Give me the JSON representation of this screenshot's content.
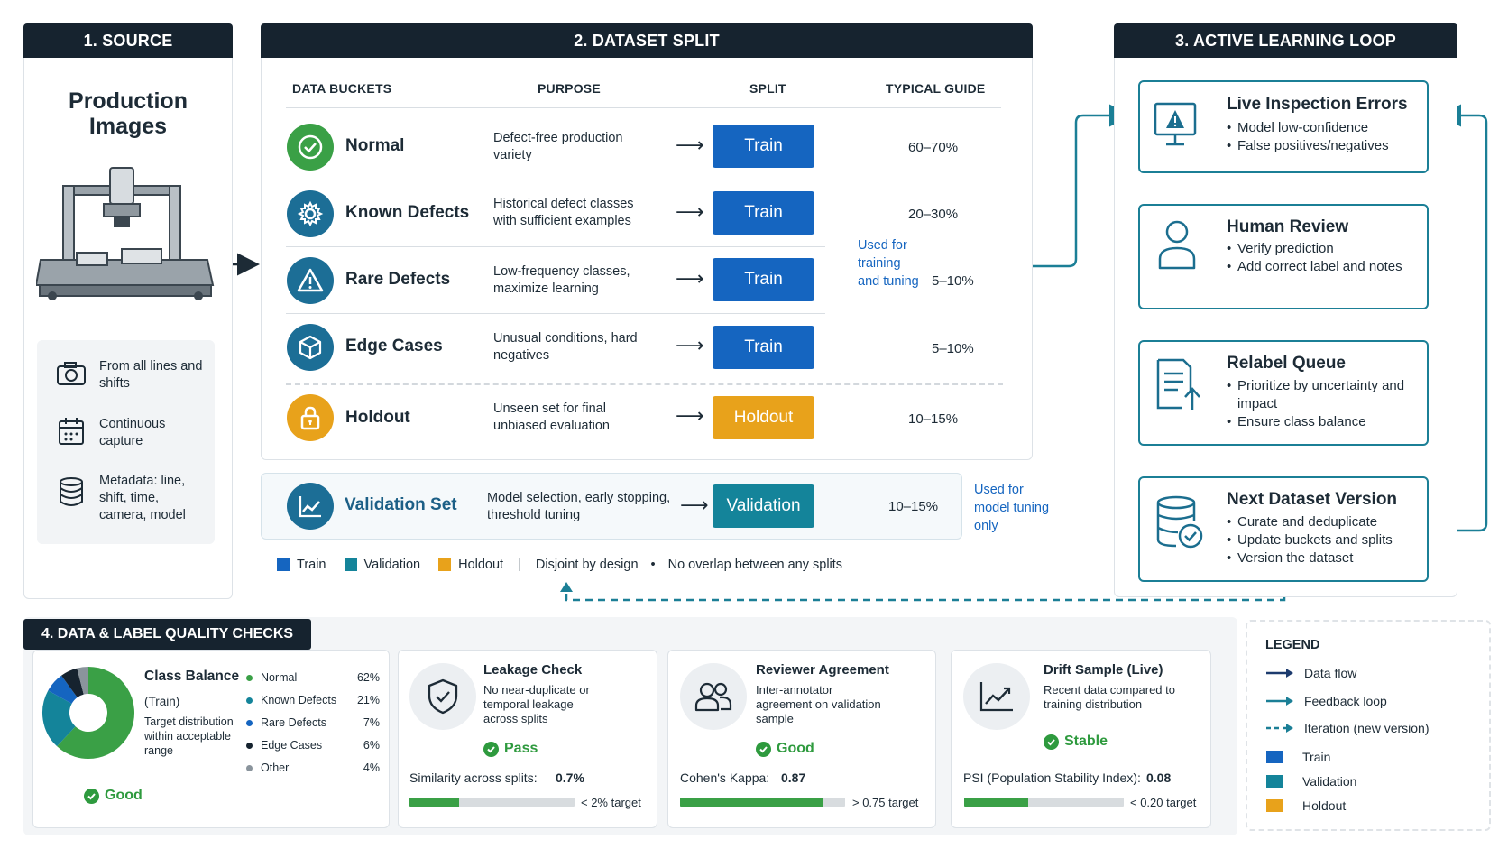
{
  "colors": {
    "header": "#16232f",
    "train": "#1565c0",
    "validation": "#14849a",
    "holdout": "#e8a21b",
    "teal": "#1b7f96",
    "good": "#2e9a3e"
  },
  "source": {
    "title": "1. SOURCE",
    "heading": "Production Images",
    "items": [
      {
        "icon": "camera-icon",
        "label": "From all lines and shifts"
      },
      {
        "icon": "calendar-icon",
        "label": "Continuous capture"
      },
      {
        "icon": "database-icon",
        "label": "Metadata: line, shift, time, camera, model"
      }
    ]
  },
  "split": {
    "title": "2. DATASET SPLIT",
    "columns": [
      "DATA BUCKETS",
      "PURPOSE",
      "SPLIT",
      "TYPICAL GUIDE"
    ],
    "rows": [
      {
        "icon": "check-circle-icon",
        "name": "Normal",
        "purpose": "Defect-free production variety",
        "split": "Train",
        "guide": "60–70%"
      },
      {
        "icon": "gear-icon",
        "name": "Known Defects",
        "purpose": "Historical defect classes with sufficient examples",
        "split": "Train",
        "guide": "20–30%"
      },
      {
        "icon": "warning-icon",
        "name": "Rare Defects",
        "purpose": "Low-frequency classes, maximize learning",
        "split": "Train",
        "guide": "5–10%"
      },
      {
        "icon": "cube-icon",
        "name": "Edge Cases",
        "purpose": "Unusual conditions, hard negatives",
        "split": "Train",
        "guide": "5–10%"
      },
      {
        "icon": "lock-icon",
        "name": "Holdout",
        "purpose": "Unseen set for final unbiased evaluation",
        "split": "Holdout",
        "guide": "10–15%"
      }
    ],
    "brace_note": "Used for training and tuning",
    "validation": {
      "icon": "line-chart-icon",
      "name": "Validation Set",
      "purpose": "Model selection, early stopping, threshold tuning",
      "split": "Validation",
      "guide": "10–15%",
      "note": "Used for model tuning only"
    },
    "legend": {
      "train": "Train",
      "validation": "Validation",
      "holdout": "Holdout",
      "disjoint": "Disjoint by design",
      "no_overlap": "No overlap between any splits"
    }
  },
  "loop": {
    "title": "3. ACTIVE LEARNING LOOP",
    "steps": [
      {
        "icon": "monitor-alert-icon",
        "title": "Live Inspection Errors",
        "items": [
          "Model low-confidence",
          "False positives/negatives"
        ]
      },
      {
        "icon": "user-icon",
        "title": "Human Review",
        "items": [
          "Verify prediction",
          "Add correct label and notes"
        ]
      },
      {
        "icon": "document-upload-icon",
        "title": "Relabel Queue",
        "items": [
          "Prioritize by uncertainty and impact",
          "Ensure class balance"
        ]
      },
      {
        "icon": "database-check-icon",
        "title": "Next Dataset Version",
        "items": [
          "Curate and deduplicate",
          "Update buckets and splits",
          "Version the dataset"
        ]
      }
    ]
  },
  "quality": {
    "title": "4. DATA & LABEL QUALITY CHECKS",
    "class_balance": {
      "title": "Class Balance",
      "subtitle": "(Train)",
      "desc": "Target distribution within acceptable range",
      "status": "Good",
      "classes": [
        {
          "name": "Normal",
          "pct": "62%",
          "value": 62,
          "color": "#3aa046"
        },
        {
          "name": "Known Defects",
          "pct": "21%",
          "value": 21,
          "color": "#14849a"
        },
        {
          "name": "Rare Defects",
          "pct": "7%",
          "value": 7,
          "color": "#1565c0"
        },
        {
          "name": "Edge Cases",
          "pct": "6%",
          "value": 6,
          "color": "#16232f"
        },
        {
          "name": "Other",
          "pct": "4%",
          "value": 4,
          "color": "#8a949c"
        }
      ]
    },
    "leakage": {
      "icon": "shield-check-icon",
      "title": "Leakage Check",
      "desc": "No near-duplicate or temporal leakage across splits",
      "status": "Pass",
      "metric_label": "Similarity across splits:",
      "metric_value": "0.7%",
      "progress": 0.3,
      "target": "< 2% target"
    },
    "agreement": {
      "icon": "users-icon",
      "title": "Reviewer Agreement",
      "desc": "Inter-annotator agreement on validation sample",
      "status": "Good",
      "metric_label": "Cohen's Kappa:",
      "metric_value": "0.87",
      "progress": 0.87,
      "target": "> 0.75 target"
    },
    "drift": {
      "icon": "trend-chart-icon",
      "title": "Drift Sample (Live)",
      "desc": "Recent data compared to training distribution",
      "status": "Stable",
      "metric_label": "PSI (Population Stability Index):",
      "metric_value": "0.08",
      "progress": 0.4,
      "target": "< 0.20 target"
    }
  },
  "legend": {
    "title": "LEGEND",
    "items": [
      {
        "kind": "arrow",
        "label": "Data flow"
      },
      {
        "kind": "arrow-teal",
        "label": "Feedback loop"
      },
      {
        "kind": "dashed",
        "label": "Iteration (new version)"
      },
      {
        "kind": "train",
        "label": "Train"
      },
      {
        "kind": "validation",
        "label": "Validation"
      },
      {
        "kind": "holdout",
        "label": "Holdout"
      }
    ]
  }
}
